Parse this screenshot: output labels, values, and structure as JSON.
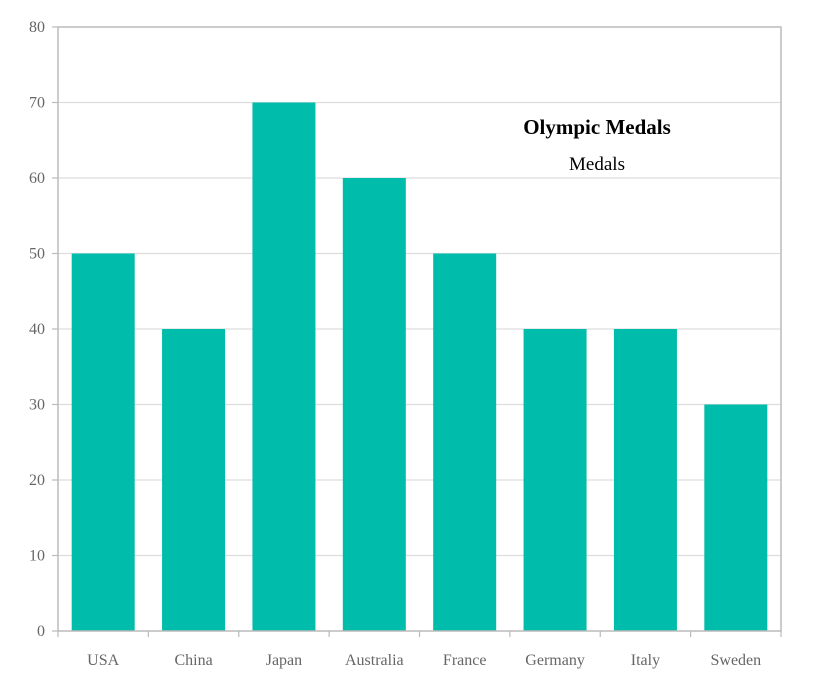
{
  "chart_data": {
    "type": "bar",
    "title": "Olympic Medals",
    "xlabel": "",
    "ylabel": "",
    "categories": [
      "USA",
      "China",
      "Japan",
      "Australia",
      "France",
      "Germany",
      "Italy",
      "Sweden"
    ],
    "series": [
      {
        "name": "Medals",
        "values": [
          50,
          40,
          70,
          60,
          50,
          40,
          40,
          30
        ],
        "color": "#00bcaa"
      }
    ],
    "ylim": [
      0,
      80
    ],
    "yticks": [
      0,
      10,
      20,
      30,
      40,
      50,
      60,
      70,
      80
    ],
    "grid": true,
    "legend_position": "top-right"
  },
  "colors": {
    "bar": "#00bcaa",
    "grid": "#dddddd",
    "axis": "#bbbbbb",
    "tick_text": "#666666"
  }
}
